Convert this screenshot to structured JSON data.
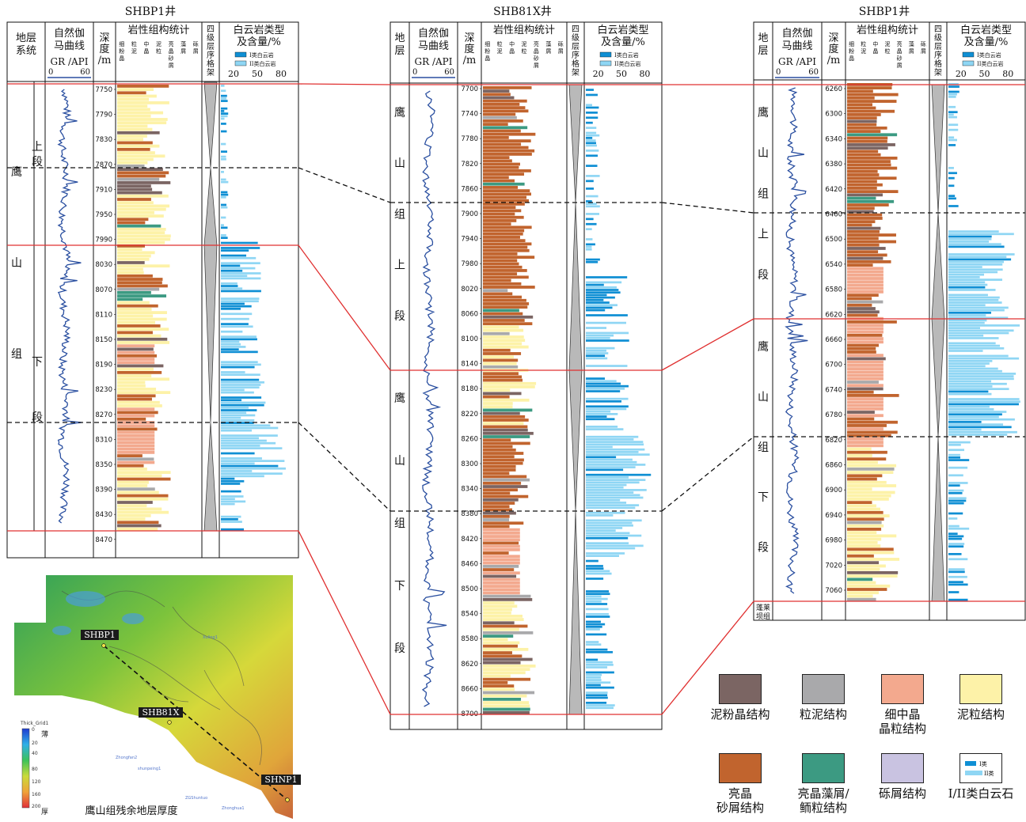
{
  "wells": [
    {
      "title": "SHBP1井",
      "col_strat": "地层\n系统",
      "col_gr": "自然伽\n马曲线",
      "gr_unit": "GR /API",
      "gr_min": "0",
      "gr_max": "60",
      "col_depth": "深\n度\n/m",
      "col_litho": "岩性组构统计",
      "litho_sub": [
        "细粉晶",
        "粒泥",
        "中晶",
        "泥粒",
        "亮晶砂屑颗粒",
        "藻屑",
        "砾屑"
      ],
      "col_seq": "四级层序格架",
      "col_dolo": "白云岩类型\n及含量/%",
      "dolo_legend": [
        "I类白云岩",
        "II类白云岩"
      ],
      "dolo_ticks": [
        "20",
        "50",
        "80"
      ],
      "depths": [
        "7750",
        "7790",
        "7830",
        "7870",
        "7910",
        "7950",
        "7990",
        "8030",
        "8070",
        "8110",
        "8150",
        "8190",
        "8230",
        "8270",
        "8310",
        "8350",
        "8390",
        "8430",
        "8470"
      ],
      "formation": [
        "鹰",
        "山",
        "组"
      ],
      "members": [
        [
          "上",
          "段"
        ],
        [
          "下",
          "段"
        ]
      ]
    },
    {
      "title": "SHB81X井",
      "col_strat": "地\n层",
      "col_gr": "自然伽\n马曲线",
      "gr_unit": "GR /API",
      "gr_min": "0",
      "gr_max": "60",
      "col_depth": "深\n度\n/m",
      "col_litho": "岩性组构统计",
      "litho_sub": [
        "细粉晶",
        "粒泥",
        "中晶",
        "泥粒",
        "亮晶砂屑颗粒",
        "藻屑",
        "砾屑"
      ],
      "col_seq": "四级层序格架",
      "col_dolo": "白云岩类型\n及含量/%",
      "dolo_legend": [
        "I类白云岩",
        "II类白云岩"
      ],
      "dolo_ticks": [
        "20",
        "50",
        "80"
      ],
      "depths": [
        "7700",
        "7740",
        "7780",
        "7820",
        "7860",
        "7900",
        "7940",
        "7980",
        "8020",
        "8060",
        "8100",
        "8140",
        "8180",
        "8220",
        "8260",
        "8300",
        "8340",
        "8380",
        "8420",
        "8460",
        "8500",
        "8540",
        "8580",
        "8620",
        "8660",
        "8700"
      ],
      "members": [
        [
          "鹰",
          "山",
          "组",
          "上",
          "段"
        ],
        [
          "鹰",
          "山",
          "组",
          "下",
          "段"
        ]
      ]
    },
    {
      "title": "SHBP1井",
      "col_strat": "地\n层",
      "col_gr": "自然伽\n马曲线",
      "gr_unit": "GR /API",
      "gr_min": "0",
      "gr_max": "60",
      "col_depth": "深\n度\n/m",
      "col_litho": "岩性组构统计",
      "litho_sub": [
        "细粉晶",
        "粒泥",
        "中晶",
        "泥粒",
        "亮晶砂屑颗粒",
        "藻屑",
        "砾屑"
      ],
      "col_seq": "四级层序格架",
      "col_dolo": "白云岩类型\n及含量/%",
      "dolo_legend": [
        "I类白云岩",
        "II类白云岩"
      ],
      "dolo_ticks": [
        "20",
        "50",
        "80"
      ],
      "depths": [
        "6260",
        "6300",
        "6340",
        "6380",
        "6420",
        "6460",
        "6500",
        "6540",
        "6580",
        "6620",
        "6660",
        "6700",
        "6740",
        "6780",
        "6820",
        "6860",
        "6900",
        "6940",
        "6980",
        "7020",
        "7060"
      ],
      "members": [
        [
          "鹰",
          "山",
          "组",
          "上",
          "段"
        ],
        [
          "鹰",
          "山",
          "组",
          "下",
          "段"
        ]
      ],
      "bottom_unit": "蓬莱\n坝组"
    }
  ],
  "map": {
    "title": "鹰山组残余地层厚度",
    "wells": [
      "SHBP1",
      "SHB81X",
      "SHNP1"
    ],
    "scale_title": "Thick_Grid1",
    "scale_ticks": [
      "0",
      "20",
      "40",
      "80",
      "120",
      "160",
      "200"
    ],
    "scale_thin": "薄",
    "scale_thick": "厚",
    "faint_labels": [
      "Xuling1",
      "Zhongfan2",
      "shunpeing1",
      "ZGShuntuo",
      "Zhonghua1"
    ]
  },
  "legend": {
    "items": [
      {
        "label": "泥粉晶结构",
        "color": "#7b6563"
      },
      {
        "label": "粒泥结构",
        "color": "#a9a9ab"
      },
      {
        "label": "细中晶\n晶粒结构",
        "color": "#f3a98e"
      },
      {
        "label": "泥粒结构",
        "color": "#fdf2a8"
      },
      {
        "label": "亮晶\n砂屑结构",
        "color": "#c1642e"
      },
      {
        "label": "亮晶藻屑/\n鲕粒结构",
        "color": "#3c9a82"
      },
      {
        "label": "砾屑结构",
        "color": "#c9c3e1"
      },
      {
        "label": "I/II类白云石",
        "color": ""
      }
    ],
    "dolo_i": "I类",
    "dolo_ii": "II类"
  },
  "colors": {
    "mudstone": "#7b6563",
    "wackestone": "#a9a9ab",
    "crystalline": "#f3a98e",
    "packstone": "#fdf2a8",
    "grainstone": "#c1642e",
    "algal": "#3c9a82",
    "rudstone": "#c9c3e1",
    "dolo_i": "#0f8fd4",
    "dolo_ii": "#8fd6f4",
    "gr_curve": "#2a4fa0",
    "correlation_red": "#e03030"
  }
}
